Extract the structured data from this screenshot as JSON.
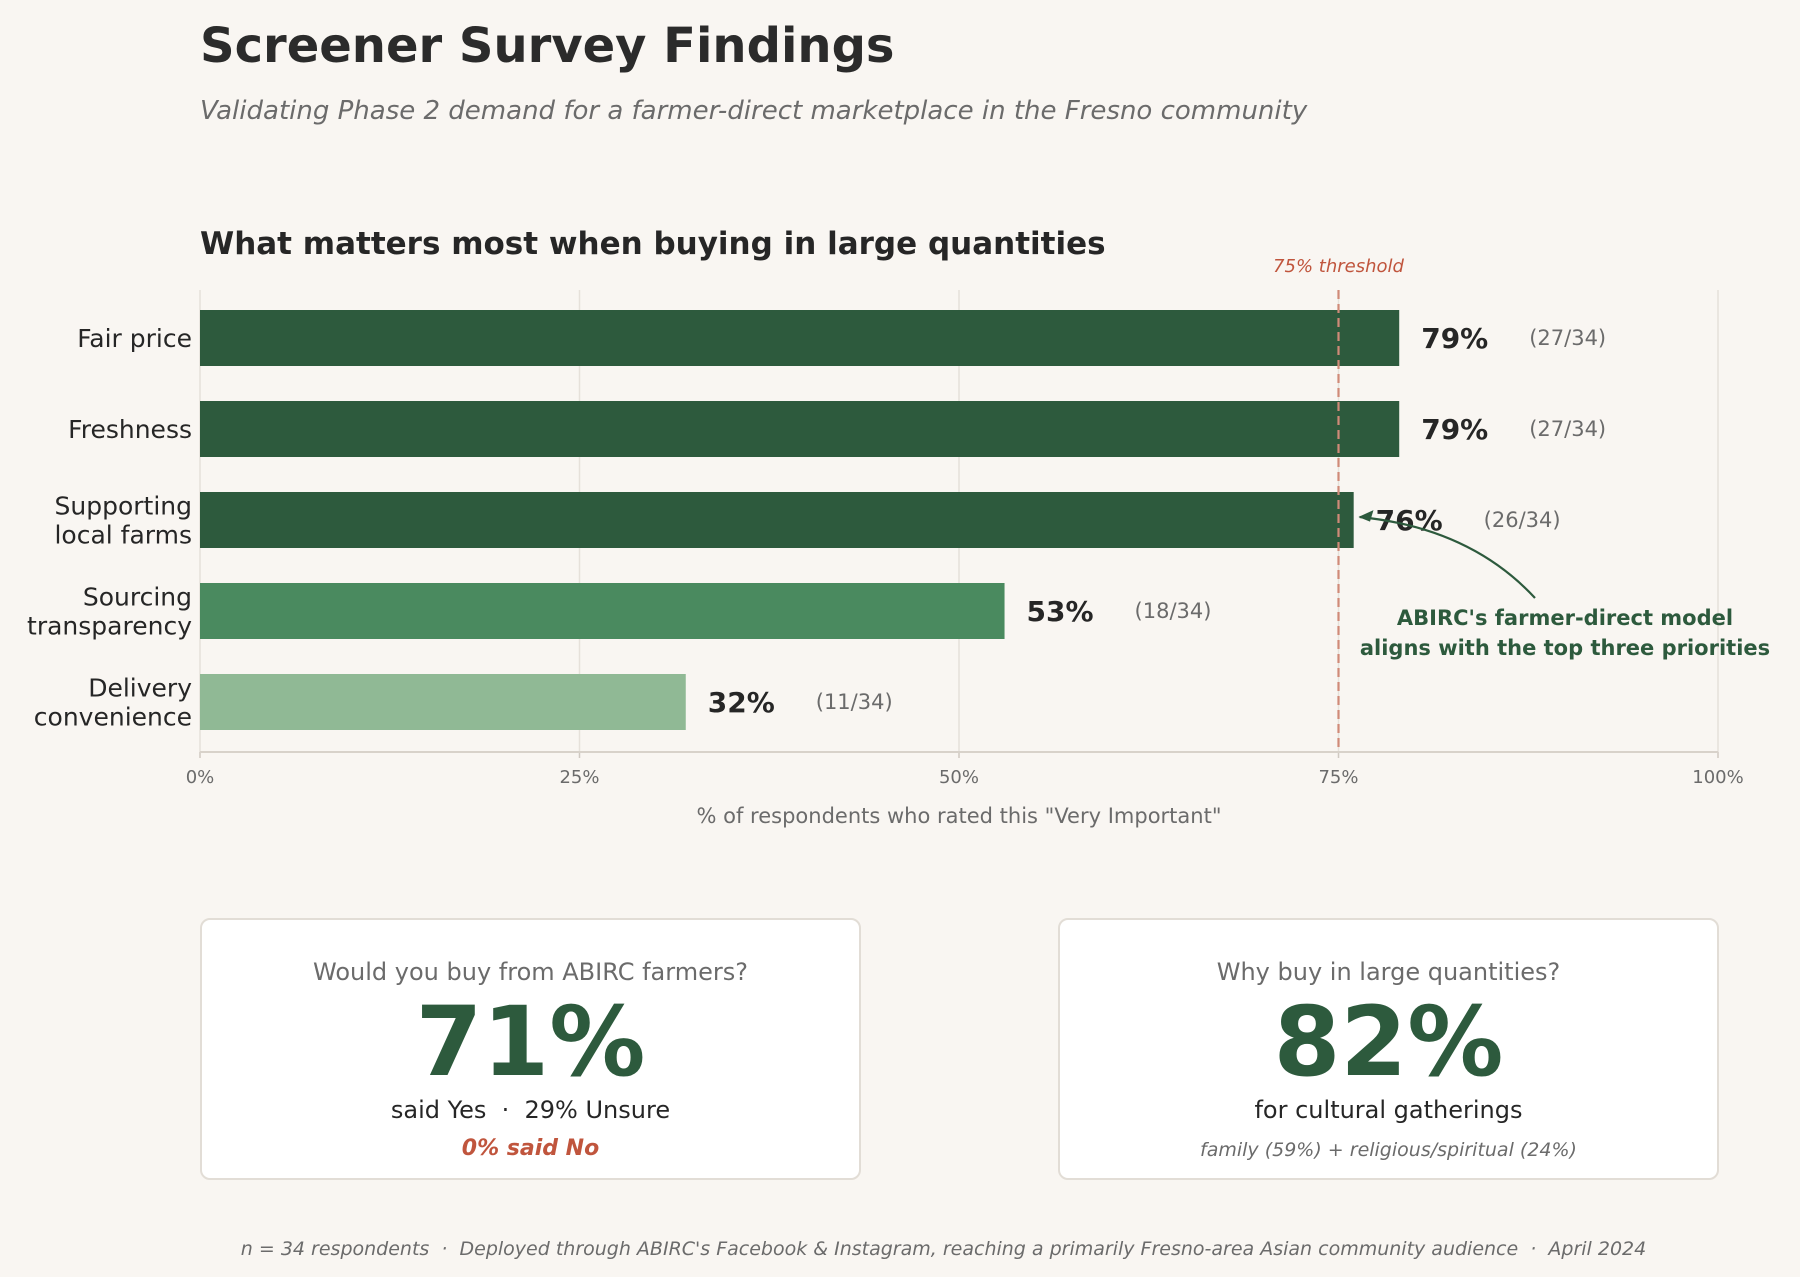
{
  "header": {
    "title": "Screener Survey Findings",
    "subtitle": "Validating Phase 2 demand for a farmer-direct marketplace in the Fresno community"
  },
  "chart_data": {
    "type": "bar",
    "orientation": "horizontal",
    "title": "What matters most when buying in large quantities",
    "categories": [
      "Fair price",
      "Freshness",
      "Supporting\nlocal farms",
      "Sourcing\ntransparency",
      "Delivery\nconvenience"
    ],
    "values": [
      79,
      79,
      76,
      53,
      32
    ],
    "value_labels": [
      "79%",
      "79%",
      "76%",
      "53%",
      "32%"
    ],
    "count_labels": [
      "(27/34)",
      "(27/34)",
      "(26/34)",
      "(18/34)",
      "(11/34)"
    ],
    "bar_colors": [
      "#2d5a3d",
      "#2d5a3d",
      "#2d5a3d",
      "#4a8a5f",
      "#90b995"
    ],
    "xlabel": "% of respondents who rated this \"Very Important\"",
    "ylabel": "",
    "xlim": [
      0,
      100
    ],
    "x_ticks": [
      0,
      25,
      50,
      75,
      100
    ],
    "x_tick_labels": [
      "0%",
      "25%",
      "50%",
      "75%",
      "100%"
    ],
    "grid": "vertical",
    "threshold": {
      "value": 75,
      "label": "75% threshold",
      "color": "#c0553d"
    },
    "annotation": {
      "text": [
        "ABIRC's farmer-direct model",
        "aligns with the top three priorities"
      ],
      "target_category_index": 2,
      "color": "#2d5a3d"
    }
  },
  "cards": {
    "buy": {
      "question": "Would you buy from ABIRC farmers?",
      "big": "71%",
      "line": "said Yes  ·  29% Unsure",
      "note": "0% said No"
    },
    "why": {
      "question": "Why buy in large quantities?",
      "big": "82%",
      "line": "for cultural gatherings",
      "note": "family (59%) + religious/spiritual (24%)"
    }
  },
  "footer": "n = 34 respondents  ·  Deployed through ABIRC's Facebook & Instagram, reaching a primarily Fresno-area Asian community audience  ·  April 2024",
  "colors": {
    "background": "#f9f6f2",
    "dark_green": "#2d5a3d",
    "accent_red": "#c0553d"
  }
}
